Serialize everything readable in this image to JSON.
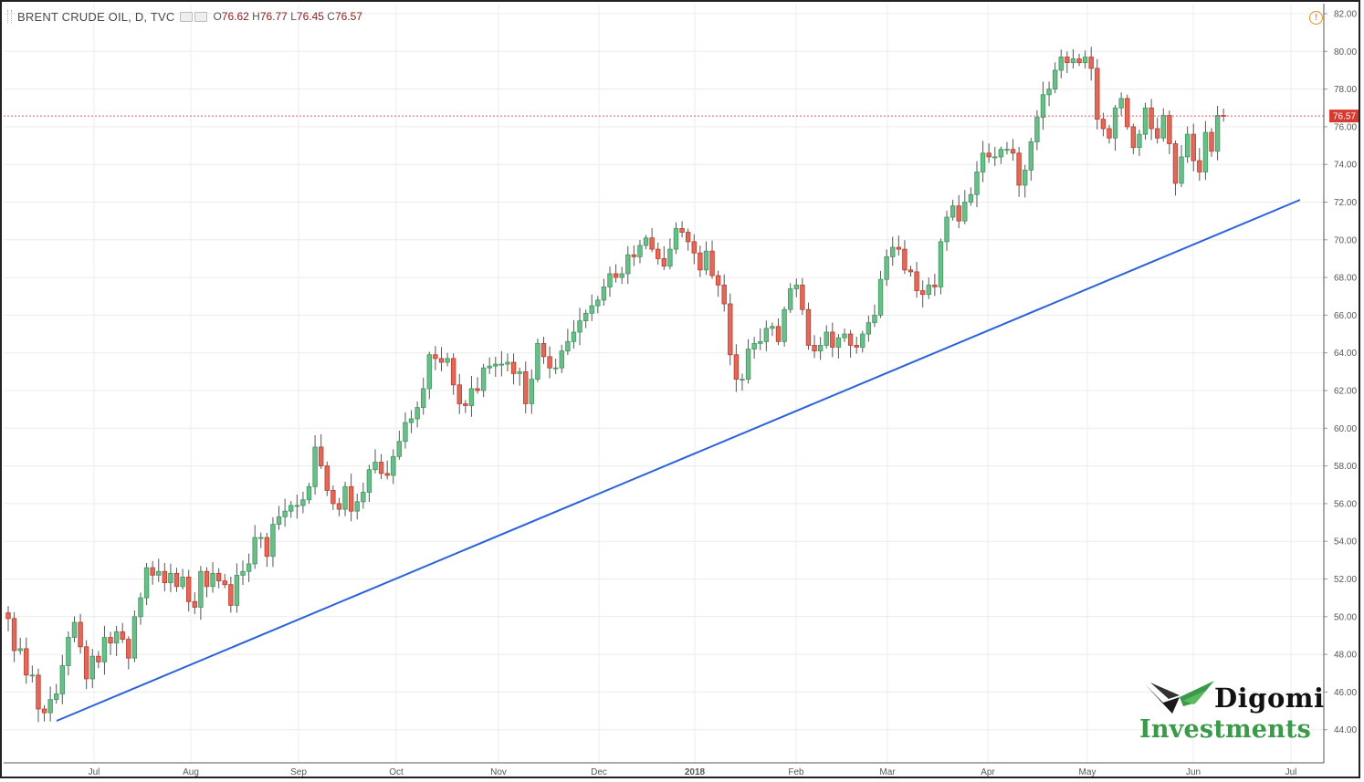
{
  "legend": {
    "symbol": "BRENT CRUDE OIL, D, TVC",
    "open_label": "O",
    "open": "76.62",
    "high_label": "H",
    "high": "76.77",
    "low_label": "L",
    "low": "76.45",
    "close_label": "C",
    "close": "76.57"
  },
  "watermark": {
    "line1": "Digomi",
    "line2": "Investments"
  },
  "chart_data": {
    "type": "candlestick",
    "title": "BRENT CRUDE OIL, D, TVC",
    "ylim": [
      43,
      82.5
    ],
    "y_ticks": [
      "44.00",
      "46.00",
      "48.00",
      "50.00",
      "52.00",
      "54.00",
      "56.00",
      "58.00",
      "60.00",
      "62.00",
      "64.00",
      "66.00",
      "68.00",
      "70.00",
      "72.00",
      "74.00",
      "76.00",
      "78.00",
      "80.00",
      "82.00"
    ],
    "x_ticks": [
      "Jul",
      "Aug",
      "Sep",
      "Oct",
      "Nov",
      "Dec",
      "2018",
      "Feb",
      "Mar",
      "Apr",
      "May",
      "Jun",
      "Jul"
    ],
    "last_price": 76.57,
    "last_price_label": "76.57",
    "closes": [
      49.9,
      48.2,
      48.3,
      46.9,
      46.9,
      45.1,
      44.9,
      45.6,
      45.9,
      47.4,
      48.9,
      49.7,
      48.4,
      46.7,
      47.9,
      47.6,
      48.9,
      48.6,
      49.2,
      48.8,
      47.8,
      50.0,
      51.0,
      52.6,
      52.2,
      52.4,
      51.8,
      52.3,
      51.6,
      52.1,
      50.8,
      50.5,
      52.4,
      51.6,
      52.3,
      51.9,
      51.7,
      50.6,
      52.2,
      52.4,
      52.8,
      54.2,
      54.2,
      53.2,
      54.9,
      55.3,
      55.6,
      55.9,
      55.9,
      56.2,
      56.9,
      59.0,
      58.0,
      56.7,
      56.0,
      55.7,
      56.9,
      55.6,
      56.1,
      56.6,
      57.8,
      58.2,
      57.6,
      57.5,
      58.5,
      59.3,
      60.3,
      60.5,
      61.1,
      62.1,
      63.9,
      63.7,
      63.5,
      63.7,
      62.3,
      61.3,
      61.2,
      62.1,
      62.0,
      63.2,
      63.3,
      63.4,
      63.4,
      63.5,
      62.9,
      63.0,
      61.3,
      62.6,
      64.5,
      63.8,
      63.2,
      63.2,
      64.1,
      64.6,
      65.1,
      65.7,
      66.1,
      66.5,
      66.8,
      67.5,
      68.2,
      68.0,
      68.2,
      69.2,
      69.1,
      69.7,
      70.1,
      69.5,
      69.0,
      68.6,
      69.5,
      70.6,
      70.4,
      69.9,
      69.3,
      68.4,
      69.4,
      68.1,
      67.6,
      66.6,
      63.9,
      62.6,
      62.6,
      64.2,
      64.5,
      64.6,
      65.3,
      65.4,
      64.6,
      66.3,
      67.4,
      67.6,
      66.3,
      64.4,
      64.1,
      64.4,
      65.1,
      64.3,
      64.8,
      65.0,
      64.4,
      64.3,
      65.0,
      65.6,
      66.0,
      67.9,
      69.1,
      69.6,
      69.5,
      68.4,
      68.3,
      67.3,
      67.1,
      67.6,
      67.5,
      69.9,
      71.2,
      71.8,
      71.0,
      72.0,
      72.4,
      73.6,
      74.6,
      74.4,
      74.4,
      74.8,
      74.8,
      74.6,
      72.9,
      73.7,
      75.2,
      76.5,
      77.7,
      78.0,
      79.0,
      79.7,
      79.4,
      79.6,
      79.4,
      79.7,
      79.1,
      76.4,
      75.9,
      75.4,
      77.0,
      77.5,
      76.0,
      74.9,
      75.6,
      77.0,
      75.9,
      75.4,
      76.6,
      75.1,
      73.0,
      74.4,
      75.6,
      74.2,
      73.6,
      75.7,
      74.7,
      76.6,
      76.57
    ]
  }
}
